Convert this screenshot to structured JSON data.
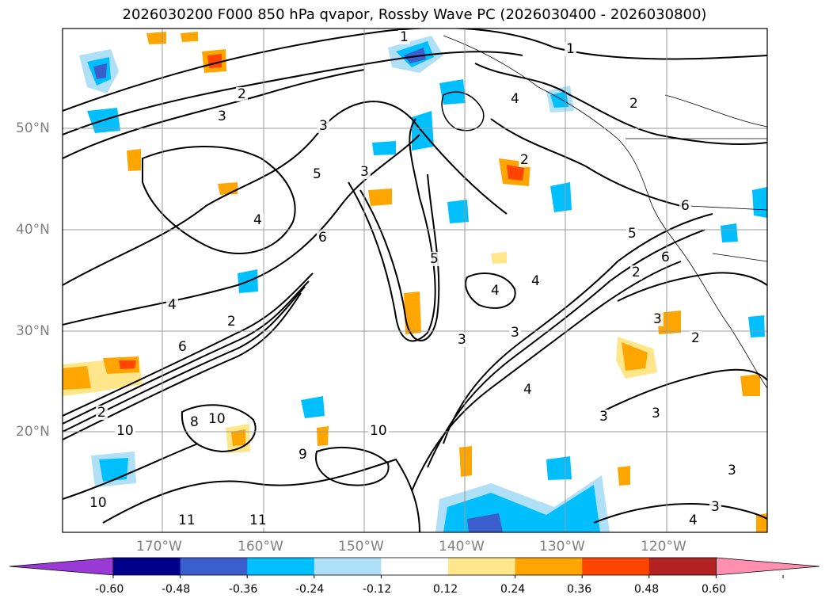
{
  "title": "2026030200 F000 850 hPa qvapor, Rossby Wave PC (2026030400 - 2026030800)",
  "lat_labels": [
    "50°N",
    "40°N",
    "30°N",
    "20°N"
  ],
  "lon_labels": [
    "170°W",
    "160°W",
    "150°W",
    "140°W",
    "130°W",
    "120°W"
  ],
  "colorbar": {
    "ticks": [
      "-0.60",
      "-0.48",
      "-0.36",
      "-0.24",
      "-0.12",
      "0.12",
      "0.24",
      "0.36",
      "0.48",
      "0.60"
    ],
    "colors": [
      "#9a3ad6",
      "#00008b",
      "#3a5fcd",
      "#00bfff",
      "#b0e0f8",
      "#ffffff",
      "#ffe68a",
      "#ffa500",
      "#ff4500",
      "#b22222",
      "#ff8fb0"
    ]
  },
  "contour_labels": [
    "1",
    "1",
    "2",
    "2",
    "3",
    "3",
    "3",
    "4",
    "4",
    "5",
    "6",
    "4",
    "2",
    "4",
    "5",
    "4",
    "3",
    "6",
    "2",
    "3",
    "4",
    "3",
    "3",
    "3",
    "3",
    "10",
    "10",
    "9",
    "8",
    "11",
    "11",
    "10",
    "2",
    "2",
    "6",
    "5",
    "6",
    "2",
    "4",
    "3",
    "10"
  ]
}
